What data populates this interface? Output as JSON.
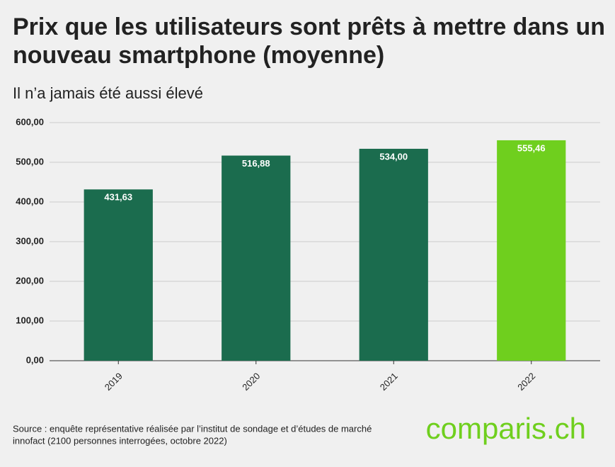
{
  "chart_data": {
    "type": "bar",
    "title": [
      "Prix que les utilisateurs sont prêts à mettre dans un",
      "nouveau smartphone (moyenne)"
    ],
    "subtitle": "Il n’a jamais été aussi élevé",
    "categories": [
      "2019",
      "2020",
      "2021",
      "2022"
    ],
    "values": [
      431.63,
      516.88,
      534.0,
      555.46
    ],
    "value_labels": [
      "431,63",
      "516,88",
      "534,00",
      "555,46"
    ],
    "colors": [
      "#1b6c4e",
      "#1b6c4e",
      "#1b6c4e",
      "#6fcf1e"
    ],
    "ylim": [
      0,
      600
    ],
    "yticks": [
      {
        "value": 0,
        "label": "0,00"
      },
      {
        "value": 100,
        "label": "100,00"
      },
      {
        "value": 200,
        "label": "200,00"
      },
      {
        "value": 300,
        "label": "300,00"
      },
      {
        "value": 400,
        "label": "400,00"
      },
      {
        "value": 500,
        "label": "500,00"
      },
      {
        "value": 600,
        "label": "600,00"
      }
    ],
    "grid": true,
    "source": [
      "Source : enquête représentative réalisée par l’institut de sondage et d’études de marché",
      "innofact (2100 personnes interrogées, octobre 2022)"
    ],
    "logo": "comparis.ch"
  }
}
